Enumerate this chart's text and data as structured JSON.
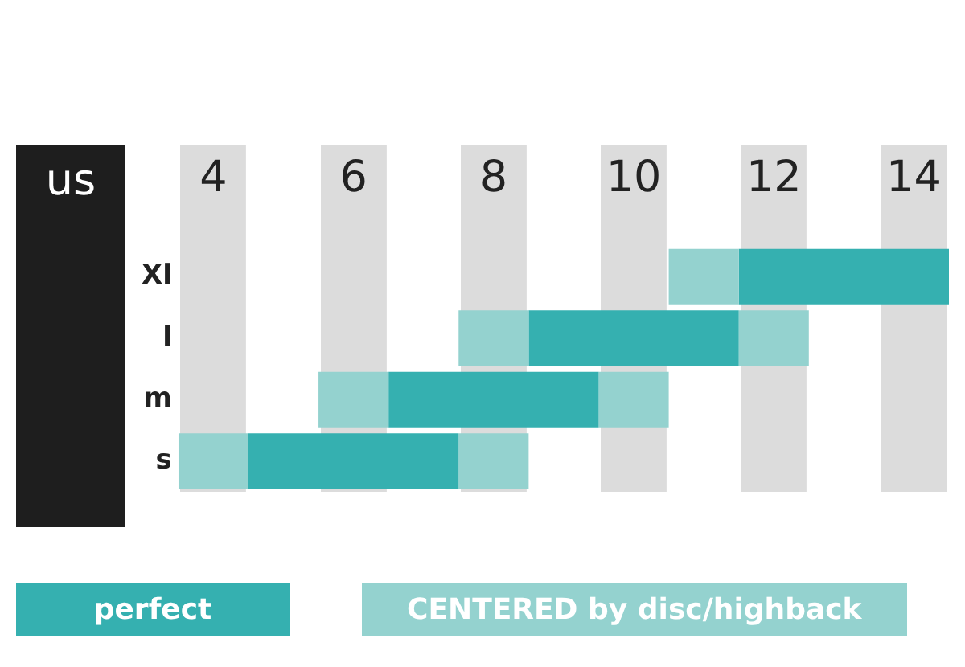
{
  "chart_data": {
    "type": "bar",
    "orientation": "horizontal",
    "xlabel": "us",
    "categories": [
      "Xl",
      "l",
      "m",
      "s"
    ],
    "series": [
      {
        "name": "CENTERED by disc/highback",
        "color": "#94d2cf",
        "base": [
          10.5,
          7.5,
          5.5,
          3.5
        ],
        "values": [
          1,
          1,
          1,
          1
        ]
      },
      {
        "name": "perfect",
        "color": "#35b0b0",
        "base": [
          11.5,
          8.5,
          6.5,
          4.5
        ],
        "values": [
          3,
          3,
          3,
          3
        ]
      },
      {
        "color": "#94d2cf",
        "base": [
          null,
          11.5,
          9.5,
          7.5
        ],
        "values": [
          null,
          1,
          1,
          1
        ]
      }
    ],
    "xlim": [
      3.5,
      14.5
    ],
    "xticks": [
      4,
      6,
      8,
      10,
      12,
      14
    ],
    "grid": "x",
    "legend": "bottom"
  }
}
